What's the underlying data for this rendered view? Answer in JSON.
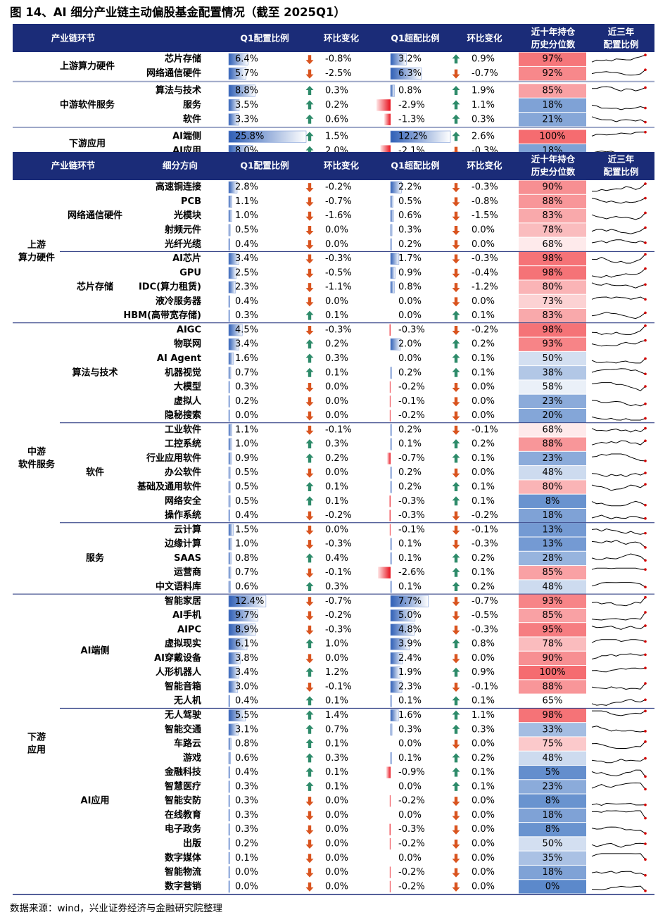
{
  "title": "图 14、AI 细分产业链主动偏股基金配置情况（截至 2025Q1）",
  "source": "数据来源：wind，兴业证券经济与金融研究院整理",
  "colors": {
    "header_bg": "#1b2c78",
    "arrow_up": "#2e8b6a",
    "arrow_down": "#d9541f",
    "bar_blue": "#3d6fc4",
    "bar_red": "#e8101c"
  },
  "summary": {
    "headers": [
      "产业链环节",
      "",
      "Q1配置比例",
      "环比变化",
      "Q1超配比例",
      "环比变化",
      "近十年持仓\n历史分位数",
      "近三年\n配置比例"
    ],
    "groups": [
      {
        "name": "上游算力硬件",
        "rows": [
          {
            "name": "芯片存储",
            "q1": "6.4%",
            "q1_chg": "-0.8%",
            "over": "3.2%",
            "over_chg": "0.9%",
            "pct": "97%"
          },
          {
            "name": "网络通信硬件",
            "q1": "5.7%",
            "q1_chg": "-2.5%",
            "over": "6.3%",
            "over_chg": "-0.7%",
            "pct": "92%"
          }
        ]
      },
      {
        "name": "中游软件服务",
        "rows": [
          {
            "name": "算法与技术",
            "q1": "8.8%",
            "q1_chg": "0.3%",
            "over": "0.8%",
            "over_chg": "1.9%",
            "pct": "85%"
          },
          {
            "name": "服务",
            "q1": "3.5%",
            "q1_chg": "0.2%",
            "over": "-2.9%",
            "over_chg": "1.1%",
            "pct": "18%"
          },
          {
            "name": "软件",
            "q1": "3.3%",
            "q1_chg": "0.6%",
            "over": "-1.3%",
            "over_chg": "0.3%",
            "pct": "21%"
          }
        ]
      },
      {
        "name": "下游应用",
        "rows": [
          {
            "name": "AI端侧",
            "q1": "25.8%",
            "q1_chg": "1.5%",
            "over": "12.2%",
            "over_chg": "2.6%",
            "pct": "100%"
          },
          {
            "name": "AI应用",
            "q1": "8.0%",
            "q1_chg": "2.0%",
            "over": "-2.1%",
            "over_chg": "-0.3%",
            "pct": "18%"
          }
        ]
      }
    ]
  },
  "detail": {
    "headers": [
      "产业链环节",
      "细分方向",
      "Q1配置比例",
      "环比变化",
      "Q1超配比例",
      "环比变化",
      "近十年持仓\n历史分位数",
      "近三年\n配置比例"
    ],
    "sections": [
      {
        "name": "上游\n算力硬件",
        "groups": [
          {
            "name": "网络通信硬件",
            "rows": [
              {
                "name": "高速铜连接",
                "q1": "2.8%",
                "q1_chg": "-0.2%",
                "over": "2.2%",
                "over_chg": "-0.3%",
                "pct": "90%"
              },
              {
                "name": "PCB",
                "q1": "1.1%",
                "q1_chg": "-0.7%",
                "over": "0.5%",
                "over_chg": "-0.8%",
                "pct": "88%"
              },
              {
                "name": "光模块",
                "q1": "1.0%",
                "q1_chg": "-1.6%",
                "over": "0.6%",
                "over_chg": "-1.5%",
                "pct": "83%"
              },
              {
                "name": "射频元件",
                "q1": "0.5%",
                "q1_chg": "0.0%",
                "over": "0.3%",
                "over_chg": "0.0%",
                "pct": "78%"
              },
              {
                "name": "光纤光缆",
                "q1": "0.4%",
                "q1_chg": "0.0%",
                "over": "0.2%",
                "over_chg": "0.0%",
                "pct": "68%"
              }
            ]
          },
          {
            "name": "芯片存储",
            "rows": [
              {
                "name": "AI芯片",
                "q1": "3.4%",
                "q1_chg": "-0.3%",
                "over": "1.7%",
                "over_chg": "-0.3%",
                "pct": "98%"
              },
              {
                "name": "GPU",
                "q1": "2.5%",
                "q1_chg": "-0.5%",
                "over": "0.9%",
                "over_chg": "-0.4%",
                "pct": "98%"
              },
              {
                "name": "IDC(算力租赁)",
                "q1": "2.3%",
                "q1_chg": "-1.1%",
                "over": "0.8%",
                "over_chg": "-1.2%",
                "pct": "80%"
              },
              {
                "name": "液冷服务器",
                "q1": "0.4%",
                "q1_chg": "0.0%",
                "over": "0.0%",
                "over_chg": "0.0%",
                "pct": "73%"
              },
              {
                "name": "HBM(高带宽存储)",
                "q1": "0.3%",
                "q1_chg": "0.1%",
                "over": "0.0%",
                "over_chg": "0.1%",
                "pct": "83%"
              }
            ]
          }
        ]
      },
      {
        "name": "中游\n软件服务",
        "groups": [
          {
            "name": "算法与技术",
            "rows": [
              {
                "name": "AIGC",
                "q1": "4.5%",
                "q1_chg": "-0.3%",
                "over": "-0.3%",
                "over_chg": "-0.2%",
                "pct": "98%"
              },
              {
                "name": "物联网",
                "q1": "3.4%",
                "q1_chg": "0.2%",
                "over": "2.0%",
                "over_chg": "0.2%",
                "pct": "93%"
              },
              {
                "name": "AI Agent",
                "q1": "1.6%",
                "q1_chg": "0.3%",
                "over": "0.0%",
                "over_chg": "0.1%",
                "pct": "50%"
              },
              {
                "name": "机器视觉",
                "q1": "0.7%",
                "q1_chg": "0.1%",
                "over": "0.2%",
                "over_chg": "0.1%",
                "pct": "38%"
              },
              {
                "name": "大模型",
                "q1": "0.3%",
                "q1_chg": "0.0%",
                "over": "-0.2%",
                "over_chg": "0.0%",
                "pct": "58%"
              },
              {
                "name": "虚拟人",
                "q1": "0.2%",
                "q1_chg": "0.0%",
                "over": "-0.1%",
                "over_chg": "0.0%",
                "pct": "23%"
              },
              {
                "name": "隐秘搜索",
                "q1": "0.0%",
                "q1_chg": "0.0%",
                "over": "-0.2%",
                "over_chg": "0.0%",
                "pct": "20%"
              }
            ]
          },
          {
            "name": "软件",
            "rows": [
              {
                "name": "工业软件",
                "q1": "1.1%",
                "q1_chg": "-0.1%",
                "over": "0.2%",
                "over_chg": "-0.1%",
                "pct": "68%"
              },
              {
                "name": "工控系统",
                "q1": "1.0%",
                "q1_chg": "0.3%",
                "over": "0.1%",
                "over_chg": "0.2%",
                "pct": "88%"
              },
              {
                "name": "行业应用软件",
                "q1": "0.9%",
                "q1_chg": "0.2%",
                "over": "-0.7%",
                "over_chg": "0.1%",
                "pct": "23%"
              },
              {
                "name": "办公软件",
                "q1": "0.5%",
                "q1_chg": "0.0%",
                "over": "0.2%",
                "over_chg": "0.0%",
                "pct": "48%"
              },
              {
                "name": "基础及通用软件",
                "q1": "0.5%",
                "q1_chg": "0.1%",
                "over": "0.2%",
                "over_chg": "0.1%",
                "pct": "80%"
              },
              {
                "name": "网络安全",
                "q1": "0.5%",
                "q1_chg": "0.1%",
                "over": "-0.3%",
                "over_chg": "0.1%",
                "pct": "8%"
              },
              {
                "name": "操作系统",
                "q1": "0.4%",
                "q1_chg": "-0.2%",
                "over": "-0.3%",
                "over_chg": "-0.2%",
                "pct": "18%"
              }
            ]
          },
          {
            "name": "服务",
            "rows": [
              {
                "name": "云计算",
                "q1": "1.5%",
                "q1_chg": "0.0%",
                "over": "-0.1%",
                "over_chg": "-0.1%",
                "pct": "13%"
              },
              {
                "name": "边缘计算",
                "q1": "1.0%",
                "q1_chg": "-0.3%",
                "over": "0.1%",
                "over_chg": "-0.3%",
                "pct": "13%"
              },
              {
                "name": "SAAS",
                "q1": "0.8%",
                "q1_chg": "0.4%",
                "over": "0.1%",
                "over_chg": "0.2%",
                "pct": "28%"
              },
              {
                "name": "运营商",
                "q1": "0.7%",
                "q1_chg": "-0.1%",
                "over": "-2.6%",
                "over_chg": "0.1%",
                "pct": "85%"
              },
              {
                "name": "中文语料库",
                "q1": "0.6%",
                "q1_chg": "0.3%",
                "over": "0.1%",
                "over_chg": "0.2%",
                "pct": "48%"
              }
            ]
          }
        ]
      },
      {
        "name": "下游\n应用",
        "groups": [
          {
            "name": "AI端侧",
            "rows": [
              {
                "name": "智能家居",
                "q1": "12.4%",
                "q1_chg": "-0.7%",
                "over": "7.7%",
                "over_chg": "-0.7%",
                "pct": "93%"
              },
              {
                "name": "AI手机",
                "q1": "9.7%",
                "q1_chg": "-0.2%",
                "over": "5.0%",
                "over_chg": "-0.5%",
                "pct": "85%"
              },
              {
                "name": "AIPC",
                "q1": "8.9%",
                "q1_chg": "-0.3%",
                "over": "4.8%",
                "over_chg": "-0.3%",
                "pct": "95%"
              },
              {
                "name": "虚拟现实",
                "q1": "6.1%",
                "q1_chg": "1.0%",
                "over": "3.9%",
                "over_chg": "0.8%",
                "pct": "78%"
              },
              {
                "name": "AI穿戴设备",
                "q1": "3.8%",
                "q1_chg": "0.0%",
                "over": "2.4%",
                "over_chg": "0.0%",
                "pct": "90%"
              },
              {
                "name": "人形机器人",
                "q1": "3.4%",
                "q1_chg": "1.2%",
                "over": "1.9%",
                "over_chg": "0.9%",
                "pct": "100%"
              },
              {
                "name": "智能音箱",
                "q1": "3.0%",
                "q1_chg": "-0.1%",
                "over": "2.3%",
                "over_chg": "-0.1%",
                "pct": "88%"
              },
              {
                "name": "无人机",
                "q1": "0.4%",
                "q1_chg": "0.1%",
                "over": "0.1%",
                "over_chg": "0.1%",
                "pct": "65%"
              }
            ]
          },
          {
            "name": "AI应用",
            "rows": [
              {
                "name": "无人驾驶",
                "q1": "5.5%",
                "q1_chg": "1.4%",
                "over": "1.6%",
                "over_chg": "1.1%",
                "pct": "98%"
              },
              {
                "name": "智能交通",
                "q1": "3.1%",
                "q1_chg": "0.7%",
                "over": "0.3%",
                "over_chg": "0.3%",
                "pct": "33%"
              },
              {
                "name": "车路云",
                "q1": "0.8%",
                "q1_chg": "0.1%",
                "over": "0.0%",
                "over_chg": "0.0%",
                "pct": "75%"
              },
              {
                "name": "游戏",
                "q1": "0.6%",
                "q1_chg": "0.3%",
                "over": "0.1%",
                "over_chg": "0.2%",
                "pct": "48%"
              },
              {
                "name": "金融科技",
                "q1": "0.4%",
                "q1_chg": "0.1%",
                "over": "-0.9%",
                "over_chg": "0.1%",
                "pct": "5%"
              },
              {
                "name": "智慧医疗",
                "q1": "0.3%",
                "q1_chg": "0.1%",
                "over": "0.0%",
                "over_chg": "0.1%",
                "pct": "23%"
              },
              {
                "name": "智能安防",
                "q1": "0.3%",
                "q1_chg": "0.0%",
                "over": "-0.2%",
                "over_chg": "0.0%",
                "pct": "8%"
              },
              {
                "name": "在线教育",
                "q1": "0.3%",
                "q1_chg": "0.0%",
                "over": "0.0%",
                "over_chg": "0.0%",
                "pct": "18%"
              },
              {
                "name": "电子政务",
                "q1": "0.3%",
                "q1_chg": "0.0%",
                "over": "-0.3%",
                "over_chg": "0.0%",
                "pct": "8%"
              },
              {
                "name": "出版",
                "q1": "0.2%",
                "q1_chg": "0.0%",
                "over": "-0.2%",
                "over_chg": "0.0%",
                "pct": "50%"
              },
              {
                "name": "数字媒体",
                "q1": "0.1%",
                "q1_chg": "0.0%",
                "over": "0.0%",
                "over_chg": "0.0%",
                "pct": "35%"
              },
              {
                "name": "智能物流",
                "q1": "0.0%",
                "q1_chg": "0.0%",
                "over": "-0.2%",
                "over_chg": "0.0%",
                "pct": "18%"
              },
              {
                "name": "数字营销",
                "q1": "0.0%",
                "q1_chg": "0.0%",
                "over": "-0.2%",
                "over_chg": "0.0%",
                "pct": "0%"
              }
            ]
          }
        ]
      }
    ]
  }
}
